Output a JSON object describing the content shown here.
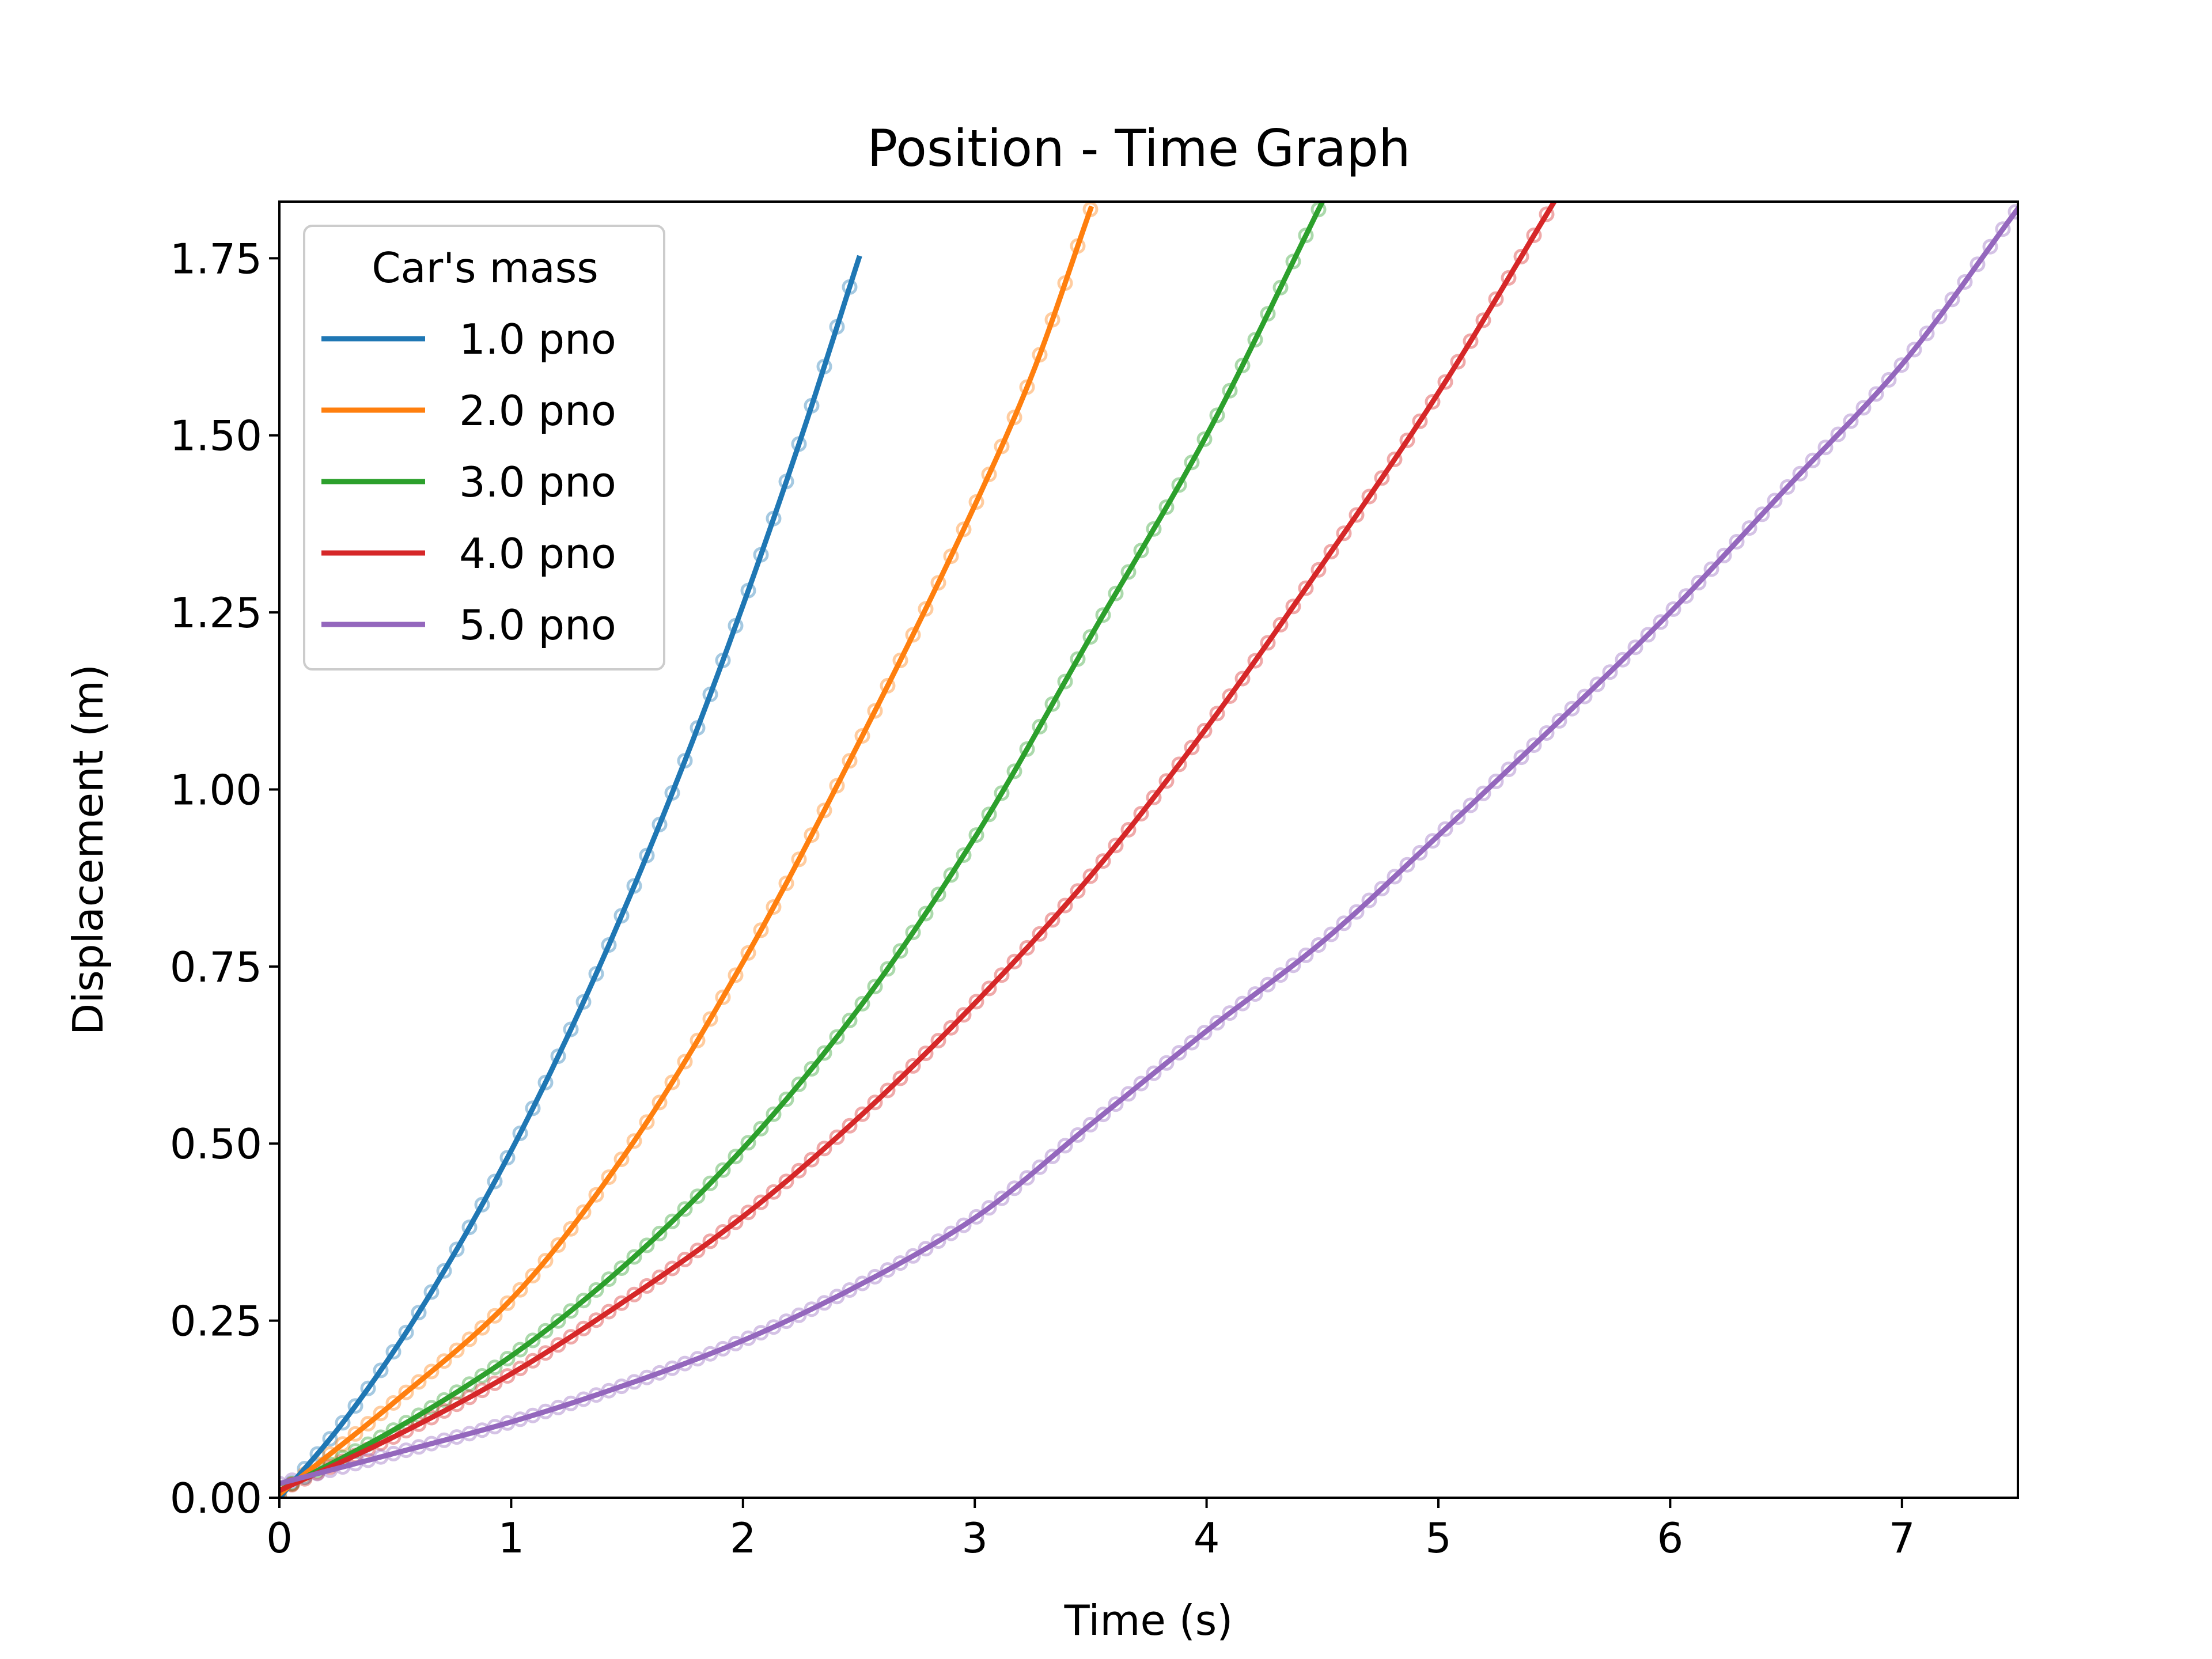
{
  "chart_data": {
    "type": "line",
    "title": "Position - Time Graph",
    "xlabel": "Time (s)",
    "ylabel": "Displacement (m)",
    "xlim": [
      0,
      7.5
    ],
    "ylim": [
      0,
      1.83
    ],
    "xticks": [
      0,
      1,
      2,
      3,
      4,
      5,
      6,
      7
    ],
    "xtick_labels": [
      "0",
      "1",
      "2",
      "3",
      "4",
      "5",
      "6",
      "7"
    ],
    "yticks": [
      0,
      0.25,
      0.5,
      0.75,
      1.0,
      1.25,
      1.5,
      1.75
    ],
    "ytick_labels": [
      "0.00",
      "0.25",
      "0.50",
      "0.75",
      "1.00",
      "1.25",
      "1.50",
      "1.75"
    ],
    "grid": false,
    "legend": {
      "title": "Car's mass",
      "placement": "top-left"
    },
    "series": [
      {
        "name": "1.0 pno",
        "color": "#1f77b4",
        "x": [
          0,
          0.25,
          0.5,
          0.75,
          1.0,
          1.25,
          1.5,
          1.75,
          2.0,
          2.25,
          2.5
        ],
        "y": [
          0.0,
          0.096,
          0.21,
          0.342,
          0.49,
          0.656,
          0.84,
          1.041,
          1.26,
          1.496,
          1.75
        ]
      },
      {
        "name": "2.0 pno",
        "color": "#ff7f0e",
        "x": [
          0,
          0.5,
          1.0,
          1.5,
          2.0,
          2.5,
          3.0,
          3.25,
          3.5
        ],
        "y": [
          0.005,
          0.136,
          0.28,
          0.489,
          0.756,
          1.066,
          1.401,
          1.588,
          1.82
        ]
      },
      {
        "name": "3.0 pno",
        "color": "#2ca02c",
        "x": [
          0,
          0.5,
          1.0,
          1.5,
          2.0,
          2.5,
          3.0,
          3.5,
          4.0,
          4.5
        ],
        "y": [
          0.01,
          0.097,
          0.2,
          0.331,
          0.493,
          0.691,
          0.932,
          1.216,
          1.5,
          1.83
        ]
      },
      {
        "name": "4.0 pno",
        "color": "#d62728",
        "x": [
          0,
          0.5,
          1.0,
          1.5,
          2.0,
          2.5,
          3.0,
          3.5,
          4.0,
          4.5,
          5.0,
          5.5
        ],
        "y": [
          0.01,
          0.087,
          0.175,
          0.28,
          0.397,
          0.537,
          0.698,
          0.878,
          1.087,
          1.318,
          1.56,
          1.83
        ]
      },
      {
        "name": "5.0 pno",
        "color": "#9467bd",
        "x": [
          0,
          0.5,
          1.0,
          1.5,
          2.0,
          2.5,
          3.0,
          3.5,
          4.0,
          4.5,
          5.0,
          5.5,
          6.0,
          6.5,
          7.0,
          7.5
        ],
        "y": [
          0.02,
          0.063,
          0.107,
          0.16,
          0.222,
          0.3,
          0.395,
          0.527,
          0.659,
          0.785,
          0.935,
          1.09,
          1.25,
          1.425,
          1.6,
          1.82
        ]
      }
    ]
  }
}
